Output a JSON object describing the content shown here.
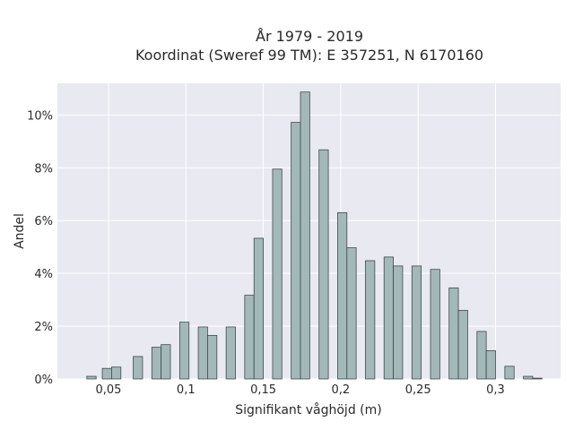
{
  "chart_data": {
    "type": "bar",
    "title": "År 1979 - 2019",
    "subtitle": "Koordinat (Sweref 99 TM): E 357251, N 6170160",
    "xlabel": "Signifikant våghöjd (m)",
    "ylabel": "Andel",
    "xlim": [
      0.017,
      0.342
    ],
    "ylim": [
      0,
      11.2
    ],
    "x_ticks": [
      {
        "value": 0.05,
        "label": "0,05"
      },
      {
        "value": 0.1,
        "label": "0,1"
      },
      {
        "value": 0.15,
        "label": "0,15"
      },
      {
        "value": 0.2,
        "label": "0,2"
      },
      {
        "value": 0.25,
        "label": "0,25"
      },
      {
        "value": 0.3,
        "label": "0,3"
      }
    ],
    "y_ticks": [
      {
        "value": 0,
        "label": "0%"
      },
      {
        "value": 2,
        "label": "2%"
      },
      {
        "value": 4,
        "label": "4%"
      },
      {
        "value": 6,
        "label": "6%"
      },
      {
        "value": 8,
        "label": "8%"
      },
      {
        "value": 10,
        "label": "10%"
      }
    ],
    "bin_width": 0.006,
    "bins": [
      {
        "x": 0.039,
        "y": 0.1
      },
      {
        "x": 0.049,
        "y": 0.4
      },
      {
        "x": 0.055,
        "y": 0.45
      },
      {
        "x": 0.069,
        "y": 0.85
      },
      {
        "x": 0.081,
        "y": 1.2
      },
      {
        "x": 0.087,
        "y": 1.3
      },
      {
        "x": 0.099,
        "y": 2.15
      },
      {
        "x": 0.111,
        "y": 1.97
      },
      {
        "x": 0.117,
        "y": 1.65
      },
      {
        "x": 0.129,
        "y": 1.97
      },
      {
        "x": 0.141,
        "y": 3.17
      },
      {
        "x": 0.147,
        "y": 5.33
      },
      {
        "x": 0.159,
        "y": 7.95
      },
      {
        "x": 0.171,
        "y": 9.72
      },
      {
        "x": 0.177,
        "y": 10.87
      },
      {
        "x": 0.189,
        "y": 8.68
      },
      {
        "x": 0.201,
        "y": 6.3
      },
      {
        "x": 0.207,
        "y": 4.97
      },
      {
        "x": 0.219,
        "y": 4.48
      },
      {
        "x": 0.231,
        "y": 4.62
      },
      {
        "x": 0.237,
        "y": 4.28
      },
      {
        "x": 0.249,
        "y": 4.28
      },
      {
        "x": 0.261,
        "y": 4.15
      },
      {
        "x": 0.273,
        "y": 3.45
      },
      {
        "x": 0.279,
        "y": 2.6
      },
      {
        "x": 0.291,
        "y": 1.8
      },
      {
        "x": 0.297,
        "y": 1.07
      },
      {
        "x": 0.309,
        "y": 0.48
      },
      {
        "x": 0.321,
        "y": 0.1
      },
      {
        "x": 0.327,
        "y": 0.03
      }
    ],
    "grid": true,
    "colors": {
      "bar_fill": "#a3b9b9",
      "bar_edge": "#3f4a4a",
      "plot_background": "#e9e9f1",
      "grid": "#ffffff"
    }
  }
}
